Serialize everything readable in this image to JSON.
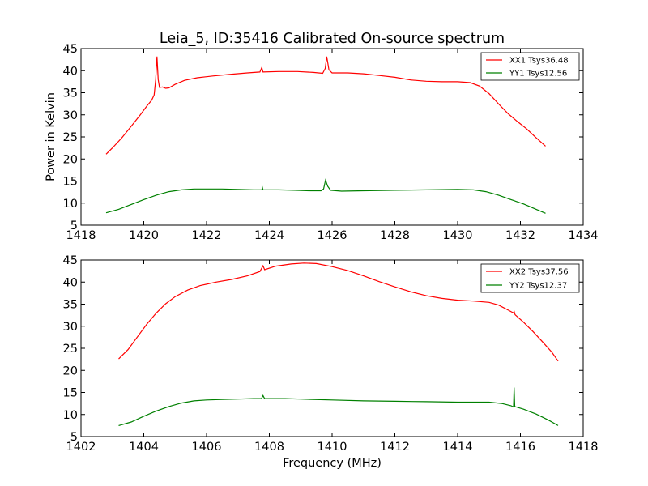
{
  "chart_data": [
    {
      "type": "line",
      "title": "Leia_5, ID:35416 Calibrated On-source spectrum",
      "xlabel": "",
      "ylabel": "Power in Kelvin",
      "xlim": [
        1418,
        1434
      ],
      "ylim": [
        5,
        45
      ],
      "xticks": [
        "1418",
        "1420",
        "1422",
        "1424",
        "1426",
        "1428",
        "1430",
        "1432",
        "1434"
      ],
      "yticks": [
        "5",
        "10",
        "15",
        "20",
        "25",
        "30",
        "35",
        "40",
        "45"
      ],
      "grid": false,
      "legend_position": "top-right",
      "series": [
        {
          "name": "XX1 Tsys36.48",
          "color": "#ff0000",
          "points": [
            [
              1418.8,
              21.1
            ],
            [
              1419.0,
              22.5
            ],
            [
              1419.3,
              24.8
            ],
            [
              1419.6,
              27.4
            ],
            [
              1419.9,
              30.1
            ],
            [
              1420.1,
              32.0
            ],
            [
              1420.25,
              33.3
            ],
            [
              1420.33,
              34.5
            ],
            [
              1420.38,
              38.0
            ],
            [
              1420.42,
              43.2
            ],
            [
              1420.46,
              38.0
            ],
            [
              1420.5,
              36.2
            ],
            [
              1420.6,
              36.3
            ],
            [
              1420.7,
              36.0
            ],
            [
              1420.8,
              36.1
            ],
            [
              1421.0,
              36.9
            ],
            [
              1421.3,
              37.8
            ],
            [
              1421.7,
              38.4
            ],
            [
              1422.2,
              38.8
            ],
            [
              1422.8,
              39.2
            ],
            [
              1423.3,
              39.5
            ],
            [
              1423.7,
              39.7
            ],
            [
              1423.76,
              40.7
            ],
            [
              1423.8,
              39.7
            ],
            [
              1424.3,
              39.8
            ],
            [
              1424.9,
              39.8
            ],
            [
              1425.4,
              39.6
            ],
            [
              1425.7,
              39.4
            ],
            [
              1425.78,
              40.5
            ],
            [
              1425.83,
              43.2
            ],
            [
              1425.9,
              40.2
            ],
            [
              1426.0,
              39.5
            ],
            [
              1426.5,
              39.5
            ],
            [
              1427.0,
              39.3
            ],
            [
              1427.5,
              38.9
            ],
            [
              1428.0,
              38.5
            ],
            [
              1428.5,
              37.9
            ],
            [
              1429.0,
              37.6
            ],
            [
              1429.5,
              37.5
            ],
            [
              1430.0,
              37.5
            ],
            [
              1430.4,
              37.3
            ],
            [
              1430.7,
              36.5
            ],
            [
              1431.0,
              34.8
            ],
            [
              1431.3,
              32.5
            ],
            [
              1431.6,
              30.3
            ],
            [
              1431.9,
              28.5
            ],
            [
              1432.2,
              26.8
            ],
            [
              1432.5,
              24.8
            ],
            [
              1432.8,
              22.9
            ]
          ]
        },
        {
          "name": "YY1 Tsys12.56",
          "color": "#008000",
          "points": [
            [
              1418.8,
              7.8
            ],
            [
              1419.2,
              8.6
            ],
            [
              1419.6,
              9.7
            ],
            [
              1420.0,
              10.8
            ],
            [
              1420.4,
              11.8
            ],
            [
              1420.8,
              12.6
            ],
            [
              1421.2,
              13.0
            ],
            [
              1421.6,
              13.2
            ],
            [
              1422.0,
              13.2
            ],
            [
              1422.5,
              13.2
            ],
            [
              1423.0,
              13.1
            ],
            [
              1423.5,
              13.0
            ],
            [
              1423.76,
              13.0
            ],
            [
              1423.78,
              13.5
            ],
            [
              1423.8,
              13.0
            ],
            [
              1424.3,
              13.0
            ],
            [
              1424.8,
              12.9
            ],
            [
              1425.3,
              12.8
            ],
            [
              1425.65,
              12.8
            ],
            [
              1425.73,
              13.2
            ],
            [
              1425.79,
              15.2
            ],
            [
              1425.86,
              13.8
            ],
            [
              1425.95,
              12.9
            ],
            [
              1426.3,
              12.7
            ],
            [
              1427.0,
              12.8
            ],
            [
              1428.0,
              12.9
            ],
            [
              1429.0,
              13.0
            ],
            [
              1430.0,
              13.1
            ],
            [
              1430.5,
              13.0
            ],
            [
              1430.9,
              12.6
            ],
            [
              1431.3,
              11.8
            ],
            [
              1431.7,
              10.8
            ],
            [
              1432.1,
              9.8
            ],
            [
              1432.5,
              8.6
            ],
            [
              1432.8,
              7.7
            ]
          ]
        }
      ]
    },
    {
      "type": "line",
      "title": "",
      "xlabel": "Frequency (MHz)",
      "ylabel": "",
      "xlim": [
        1402,
        1418
      ],
      "ylim": [
        5,
        45
      ],
      "xticks": [
        "1402",
        "1404",
        "1406",
        "1408",
        "1410",
        "1412",
        "1414",
        "1416",
        "1418"
      ],
      "yticks": [
        "5",
        "10",
        "15",
        "20",
        "25",
        "30",
        "35",
        "40",
        "45"
      ],
      "grid": false,
      "legend_position": "top-right",
      "series": [
        {
          "name": "XX2 Tsys37.56",
          "color": "#ff0000",
          "points": [
            [
              1403.2,
              22.6
            ],
            [
              1403.5,
              24.7
            ],
            [
              1403.8,
              27.6
            ],
            [
              1404.1,
              30.5
            ],
            [
              1404.4,
              33.0
            ],
            [
              1404.7,
              35.1
            ],
            [
              1405.0,
              36.7
            ],
            [
              1405.4,
              38.2
            ],
            [
              1405.8,
              39.2
            ],
            [
              1406.3,
              40.0
            ],
            [
              1406.8,
              40.6
            ],
            [
              1407.3,
              41.4
            ],
            [
              1407.7,
              42.4
            ],
            [
              1407.8,
              43.7
            ],
            [
              1407.85,
              42.8
            ],
            [
              1408.2,
              43.6
            ],
            [
              1408.7,
              44.1
            ],
            [
              1409.1,
              44.3
            ],
            [
              1409.5,
              44.2
            ],
            [
              1410.0,
              43.5
            ],
            [
              1410.5,
              42.6
            ],
            [
              1411.0,
              41.4
            ],
            [
              1411.5,
              40.1
            ],
            [
              1412.0,
              38.9
            ],
            [
              1412.5,
              37.8
            ],
            [
              1413.0,
              36.9
            ],
            [
              1413.5,
              36.3
            ],
            [
              1414.0,
              35.9
            ],
            [
              1414.5,
              35.7
            ],
            [
              1415.0,
              35.4
            ],
            [
              1415.3,
              34.8
            ],
            [
              1415.6,
              33.7
            ],
            [
              1415.78,
              33.0
            ],
            [
              1415.8,
              33.4
            ],
            [
              1415.83,
              32.6
            ],
            [
              1416.1,
              30.9
            ],
            [
              1416.4,
              28.8
            ],
            [
              1416.7,
              26.5
            ],
            [
              1417.0,
              24.1
            ],
            [
              1417.2,
              22.1
            ]
          ]
        },
        {
          "name": "YY2 Tsys12.37",
          "color": "#008000",
          "points": [
            [
              1403.2,
              7.5
            ],
            [
              1403.6,
              8.3
            ],
            [
              1404.0,
              9.6
            ],
            [
              1404.4,
              10.8
            ],
            [
              1404.8,
              11.8
            ],
            [
              1405.2,
              12.6
            ],
            [
              1405.6,
              13.1
            ],
            [
              1406.0,
              13.3
            ],
            [
              1406.5,
              13.4
            ],
            [
              1407.0,
              13.5
            ],
            [
              1407.5,
              13.6
            ],
            [
              1407.75,
              13.6
            ],
            [
              1407.8,
              14.3
            ],
            [
              1407.85,
              13.6
            ],
            [
              1408.5,
              13.6
            ],
            [
              1409.0,
              13.5
            ],
            [
              1410.0,
              13.3
            ],
            [
              1411.0,
              13.1
            ],
            [
              1412.0,
              13.0
            ],
            [
              1413.0,
              12.9
            ],
            [
              1414.0,
              12.8
            ],
            [
              1415.0,
              12.8
            ],
            [
              1415.4,
              12.5
            ],
            [
              1415.7,
              12.0
            ],
            [
              1415.78,
              11.7
            ],
            [
              1415.8,
              16.1
            ],
            [
              1415.82,
              11.8
            ],
            [
              1416.1,
              11.2
            ],
            [
              1416.5,
              10.1
            ],
            [
              1416.9,
              8.7
            ],
            [
              1417.2,
              7.5
            ]
          ]
        }
      ]
    }
  ]
}
